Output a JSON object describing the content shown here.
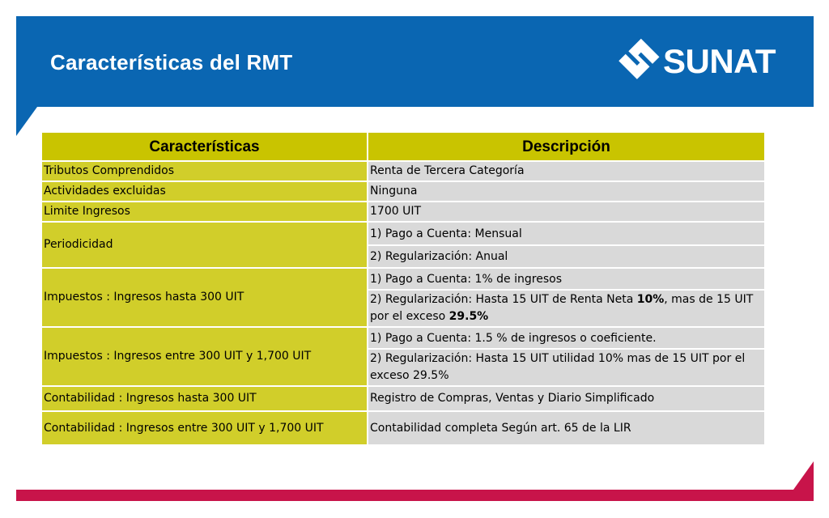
{
  "slide": {
    "title": "Características del RMT",
    "logo_text": "SUNAT",
    "colors": {
      "header": "#0a66b2",
      "header_row": "#c9c400",
      "col1": "#d1ce2a",
      "col2": "#d9d9d9",
      "footer": "#c8144a"
    }
  },
  "table": {
    "headers": [
      "Características",
      "Descripción"
    ],
    "rows": {
      "tributos": {
        "label": "Tributos Comprendidos",
        "desc": "Renta de Tercera Categoría"
      },
      "actividades": {
        "label": "Actividades excluidas",
        "desc": "Ninguna"
      },
      "limite": {
        "label": "Limite Ingresos",
        "desc": "1700 UIT"
      },
      "periodicidad": {
        "label": "Periodicidad",
        "desc1": "1) Pago a Cuenta: Mensual",
        "desc2": "2) Regularización: Anual"
      },
      "impuestos300": {
        "label": "Impuestos : Ingresos hasta 300 UIT",
        "desc1": "1) Pago a Cuenta:  1% de ingresos",
        "desc2_a": "2) Regularización:  Hasta 15 UIT de Renta Neta ",
        "desc2_b": "10%",
        "desc2_c": ", mas de 15 UIT por el exceso ",
        "desc2_d": "29.5%"
      },
      "impuestos1700": {
        "label": "Impuestos : Ingresos entre  300 UIT y 1,700 UIT",
        "desc1": "1) Pago a Cuenta: 1.5 % de ingresos o coeficiente.",
        "desc2": "2) Regularización:  Hasta 15 UIT utilidad 10% mas de 15 UIT por el exceso 29.5%"
      },
      "contabilidad300": {
        "label": "Contabilidad : Ingresos hasta 300 UIT",
        "desc": "Registro de Compras, Ventas y Diario Simplificado"
      },
      "contabilidad1700": {
        "label": "Contabilidad : Ingresos entre  300 UIT y 1,700 UIT",
        "desc": "Contabilidad completa Según art. 65 de la LIR"
      }
    }
  }
}
